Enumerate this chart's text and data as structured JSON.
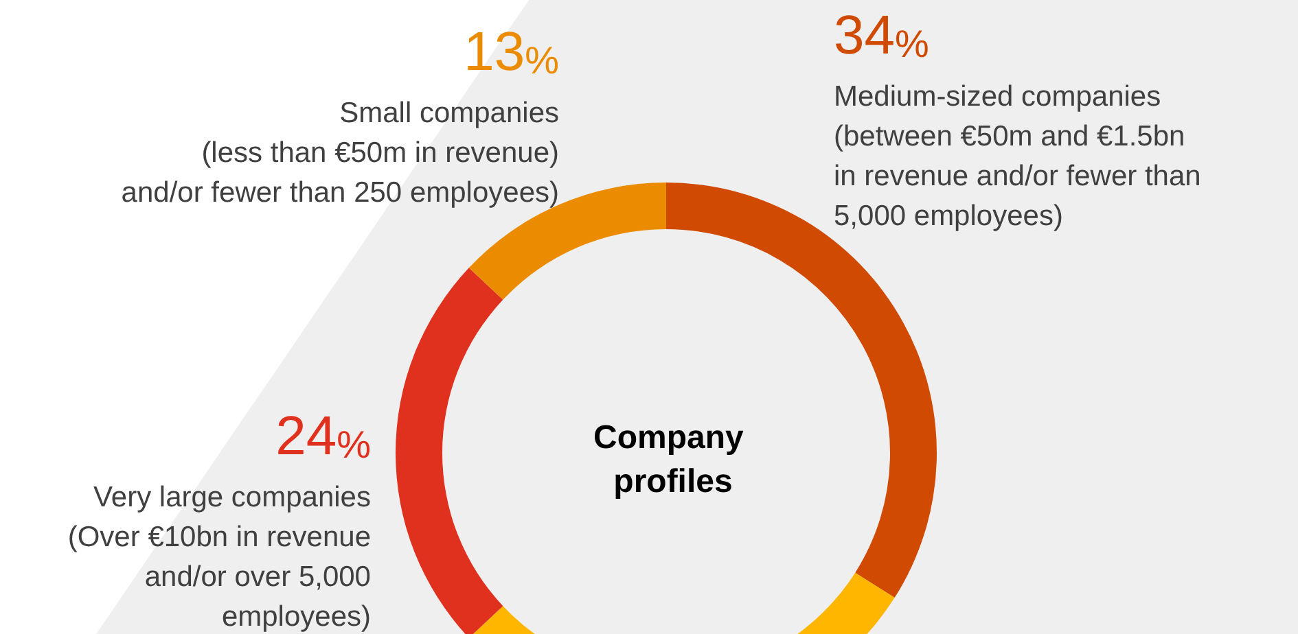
{
  "chart_data": {
    "type": "donut",
    "title": "Company profiles",
    "categories": [
      "Medium-sized companies\n(between €50m and €1.5bn\nin revenue and/or fewer than\n5,000 employees)",
      null,
      "Very large companies\n(Over €10bn in revenue\nand/or over 5,000\nemployees)",
      "Small companies\n(less than €50m in revenue)\nand/or fewer than 250 employees)"
    ],
    "values": [
      34,
      29,
      24,
      13
    ],
    "colors": [
      "#d04a02",
      "#ffb600",
      "#e0301e",
      "#eb8c00"
    ],
    "value_labels": [
      "34%",
      null,
      "24%",
      "13%"
    ],
    "legend": false
  }
}
